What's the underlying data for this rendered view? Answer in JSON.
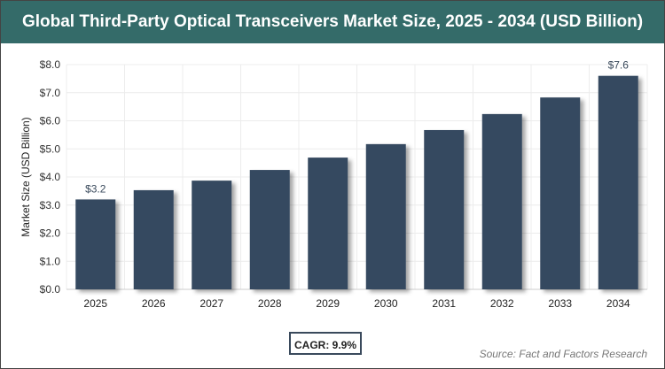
{
  "title": "Global Third-Party Optical Transceivers Market Size, 2025 - 2034 (USD Billion)",
  "cagr_label": "CAGR: 9.9%",
  "source": "Source: Fact and Factors Research",
  "colors": {
    "header": "#346b69",
    "bar": "#364a61"
  },
  "chart_data": {
    "type": "bar",
    "title": "Global Third-Party Optical Transceivers Market Size, 2025 - 2034 (USD Billion)",
    "xlabel": "",
    "ylabel": "Market Size (USD Billion)",
    "categories": [
      "2025",
      "2026",
      "2027",
      "2028",
      "2029",
      "2030",
      "2031",
      "2032",
      "2033",
      "2034"
    ],
    "values": [
      3.2,
      3.53,
      3.87,
      4.25,
      4.69,
      5.17,
      5.67,
      6.24,
      6.83,
      7.6
    ],
    "data_labels": {
      "2025": "$3.2",
      "2034": "$7.6"
    },
    "ylim": [
      0,
      8
    ],
    "yticks": [
      "$0.0",
      "$1.0",
      "$2.0",
      "$3.0",
      "$4.0",
      "$5.0",
      "$6.0",
      "$7.0",
      "$8.0"
    ],
    "grid": true,
    "legend": "none"
  }
}
